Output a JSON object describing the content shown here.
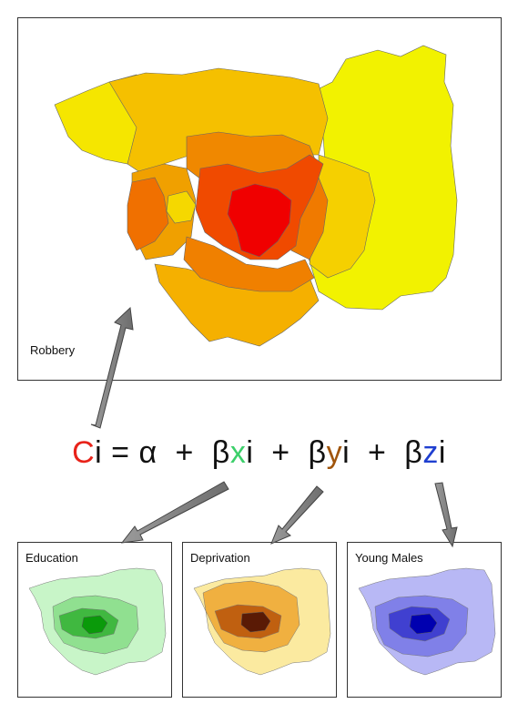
{
  "panels": {
    "main": {
      "label": "Robbery"
    },
    "education": {
      "label": "Education"
    },
    "deprivation": {
      "label": "Deprivation"
    },
    "young_males": {
      "label": "Young Males"
    }
  },
  "equation": {
    "c_letter": "C",
    "c_sub": "i",
    "equals": " = ",
    "alpha": "α",
    "plus1": "  +  ",
    "beta1": "β",
    "x_letter": "x",
    "x_sub": "i",
    "plus2": "  +  ",
    "beta2": "β",
    "y_letter": "y",
    "y_sub": "i",
    "plus3": "  +  ",
    "beta3": "β",
    "z_letter": "z",
    "z_sub": "i"
  },
  "colors": {
    "c": "#e8231a",
    "x": "#3ccf6a",
    "y": "#a0550c",
    "z": "#1f3fd0",
    "arrow_fill": "#8a8a8a"
  }
}
